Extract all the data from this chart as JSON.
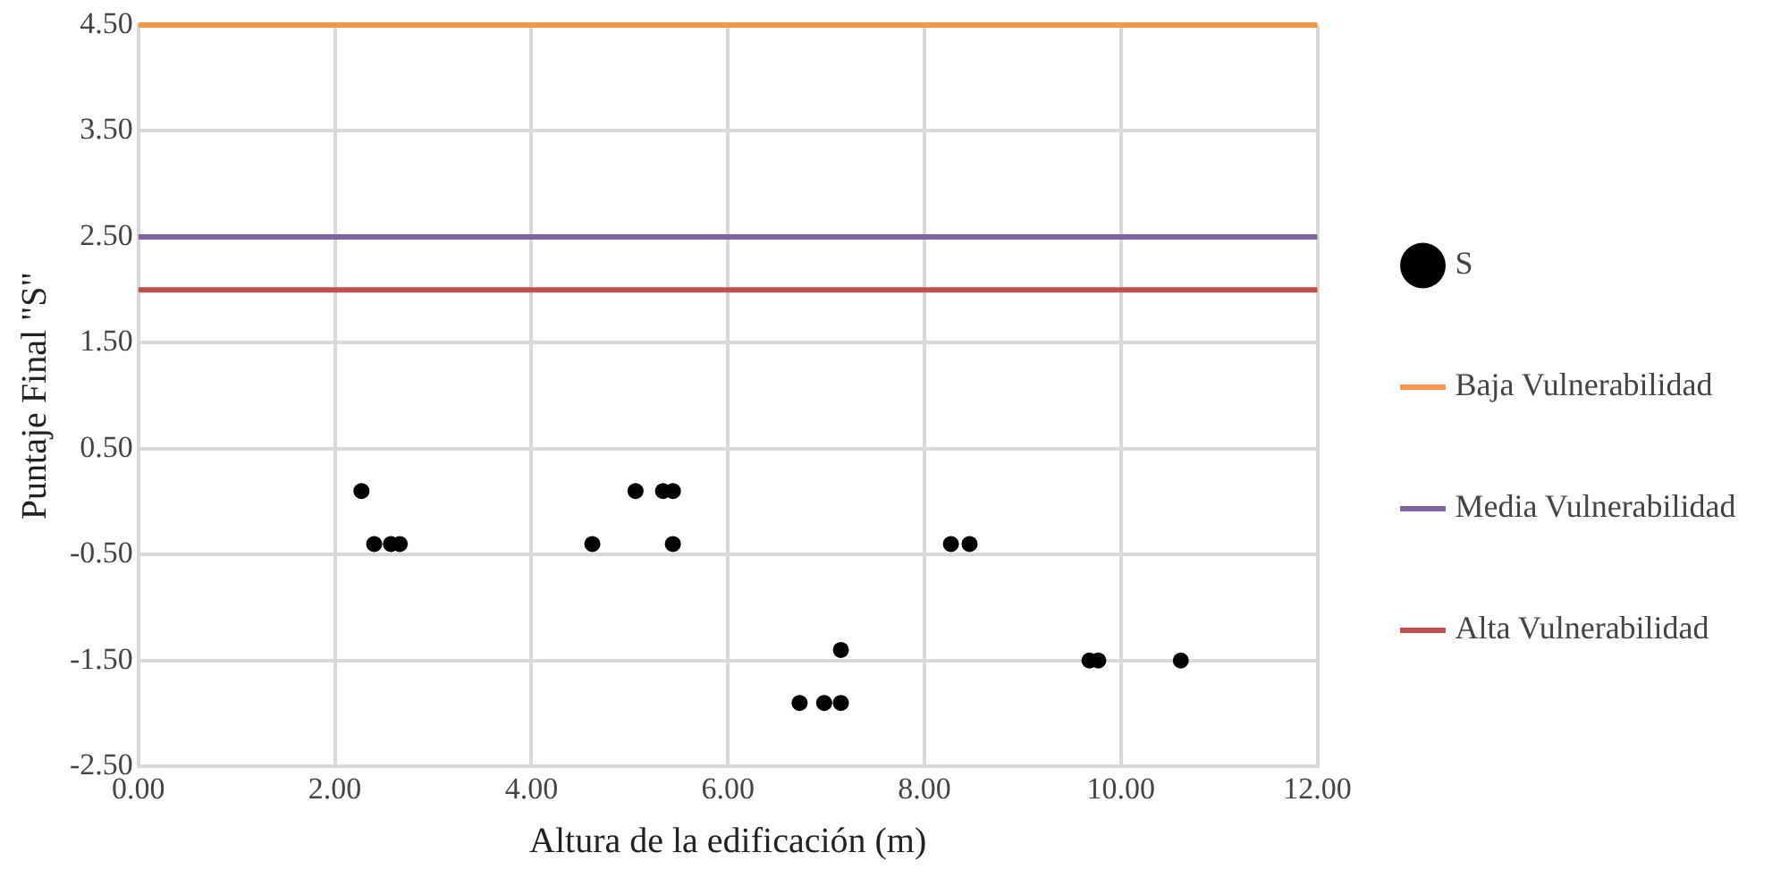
{
  "chart_data": {
    "type": "scatter",
    "xlabel": "Altura de la edificación (m)",
    "ylabel": "Puntaje Final \"S\"",
    "xlim": [
      0,
      12
    ],
    "ylim": [
      -2.5,
      4.5
    ],
    "xticks": [
      {
        "value": 0,
        "label": "0.00"
      },
      {
        "value": 2,
        "label": "2.00"
      },
      {
        "value": 4,
        "label": "4.00"
      },
      {
        "value": 6,
        "label": "6.00"
      },
      {
        "value": 8,
        "label": "8.00"
      },
      {
        "value": 10,
        "label": "10.00"
      },
      {
        "value": 12,
        "label": "12.00"
      }
    ],
    "yticks": [
      {
        "value": -2.5,
        "label": "-2.50"
      },
      {
        "value": -1.5,
        "label": "-1.50"
      },
      {
        "value": -0.5,
        "label": "-0.50"
      },
      {
        "value": 0.5,
        "label": "0.50"
      },
      {
        "value": 1.5,
        "label": "1.50"
      },
      {
        "value": 2.5,
        "label": "2.50"
      },
      {
        "value": 3.5,
        "label": "3.50"
      },
      {
        "value": 4.5,
        "label": "4.50"
      }
    ],
    "series": [
      {
        "name": "S",
        "color": "#000000",
        "x": [
          2.27,
          2.4,
          2.57,
          2.66,
          4.62,
          5.06,
          5.34,
          5.44,
          5.44,
          6.73,
          6.98,
          7.15,
          7.15,
          8.27,
          8.46,
          9.68,
          9.77,
          10.61
        ],
        "values": [
          0.1,
          -0.4,
          -0.4,
          -0.4,
          -0.4,
          0.1,
          0.1,
          0.1,
          -0.4,
          -1.9,
          -1.9,
          -1.9,
          -1.4,
          -0.4,
          -0.4,
          -1.5,
          -1.5,
          -1.5
        ]
      }
    ],
    "ref_lines": [
      {
        "axis": "y",
        "value": 4.5,
        "label": "Baja Vulnerabilidad",
        "color": "#f79646"
      },
      {
        "axis": "y",
        "value": 2.5,
        "label": "Media Vulnerabilidad",
        "color": "#8064a2"
      },
      {
        "axis": "y",
        "value": 2,
        "label": "Alta Vulnerabilidad",
        "color": "#c0504d"
      }
    ],
    "marker": "circle",
    "grid": true,
    "legend": "right"
  }
}
